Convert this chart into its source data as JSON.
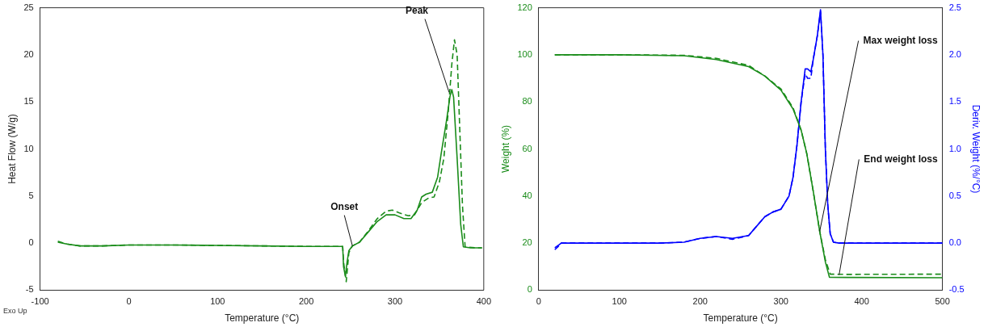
{
  "chart_data": [
    {
      "type": "line",
      "xlabel": "Temperature (°C)",
      "ylabel": "Heat Flow (W/g)",
      "xlim": [
        -100,
        400
      ],
      "xticks": [
        -100,
        0,
        100,
        200,
        300,
        400
      ],
      "ylim": [
        -5,
        25
      ],
      "yticks": [
        -5,
        0,
        5,
        10,
        15,
        20,
        25
      ],
      "grid": false,
      "legend": false,
      "marker": "none",
      "series": [
        {
          "color": "#1a8c1a",
          "line_style": "solid",
          "x": [
            -80,
            -70,
            -55,
            -30,
            0,
            50,
            100,
            150,
            200,
            241,
            242,
            244,
            246,
            248,
            252,
            260,
            270,
            280,
            290,
            300,
            310,
            318,
            325,
            330,
            335,
            342,
            348,
            352,
            358,
            362,
            364,
            366,
            370,
            374,
            377,
            385,
            398
          ],
          "values": [
            0.1,
            -0.1,
            -0.3,
            -0.3,
            -0.2,
            -0.2,
            -0.25,
            -0.3,
            -0.35,
            -0.35,
            -2.5,
            -3.5,
            -2,
            -0.8,
            -0.3,
            0.1,
            1.2,
            2.3,
            3.0,
            3.0,
            2.6,
            2.6,
            3.5,
            4.9,
            5.2,
            5.4,
            7,
            9.5,
            13,
            15.6,
            16.3,
            15.5,
            9,
            2,
            -0.4,
            -0.5,
            -0.5
          ]
        },
        {
          "color": "#1a8c1a",
          "line_style": "dashed",
          "x": [
            -80,
            -70,
            -55,
            -30,
            0,
            50,
            100,
            150,
            200,
            241,
            242,
            245,
            248,
            252,
            260,
            270,
            280,
            290,
            297,
            305,
            315,
            322,
            330,
            338,
            344,
            350,
            355,
            360,
            364,
            367,
            370,
            373,
            376,
            379,
            390,
            398
          ],
          "values": [
            0.2,
            -0.1,
            -0.3,
            -0.3,
            -0.2,
            -0.2,
            -0.25,
            -0.3,
            -0.35,
            -0.35,
            -2,
            -4.1,
            -1,
            -0.3,
            0.1,
            1.3,
            2.6,
            3.4,
            3.5,
            3.2,
            2.9,
            3.0,
            4.3,
            4.8,
            4.9,
            6.5,
            9,
            14,
            19,
            21.6,
            20,
            12,
            4,
            -0.4,
            -0.5,
            -0.5
          ]
        }
      ],
      "annotations": [
        {
          "text": "Onset",
          "x": 252,
          "y": -0.3
        },
        {
          "text": "Peak",
          "x": 361,
          "y": 16
        },
        "Exo Up"
      ]
    },
    {
      "type": "line",
      "xlabel": "Temperature (°C)",
      "ylabel": "Weight (%)",
      "y2label": "Deriv. Weight (%/°C)",
      "xlim": [
        0,
        500
      ],
      "xticks": [
        0,
        100,
        200,
        300,
        400,
        500
      ],
      "ylim": [
        0,
        120
      ],
      "yticks": [
        0,
        20,
        40,
        60,
        80,
        100,
        120
      ],
      "y2lim": [
        -0.5,
        2.5
      ],
      "y2ticks": [
        {
          "value": -0.5,
          "label": "-0.5"
        },
        {
          "value": 0,
          "label": "0.0"
        },
        {
          "value": 0.5,
          "label": "0.5"
        },
        {
          "value": 1,
          "label": "1.0"
        },
        {
          "value": 1.5,
          "label": "1.5"
        },
        {
          "value": 2,
          "label": "2.0"
        },
        {
          "value": 2.5,
          "label": "2.5"
        }
      ],
      "grid": false,
      "legend": false,
      "marker": "none",
      "series": [
        {
          "color": "#1a8c1a",
          "line_style": "solid",
          "x": [
            20,
            100,
            180,
            220,
            260,
            280,
            300,
            315,
            325,
            332,
            340,
            348,
            355,
            360,
            380,
            500
          ],
          "values": [
            100,
            100,
            99.6,
            98,
            95,
            91,
            85,
            77,
            68,
            58,
            42,
            25,
            12,
            5.5,
            5.4,
            5.3
          ]
        },
        {
          "color": "#1a8c1a",
          "line_style": "dashed",
          "x": [
            20,
            100,
            180,
            220,
            260,
            280,
            300,
            315,
            325,
            332,
            340,
            348,
            355,
            361,
            380,
            500
          ],
          "values": [
            100,
            100,
            99.8,
            98.5,
            95.5,
            91,
            85.5,
            77.5,
            68,
            58,
            42,
            25,
            13,
            6.8,
            6.7,
            6.8
          ]
        },
        {
          "color": "#0000ff",
          "line_style": "solid",
          "axis": "y2",
          "x": [
            20,
            25,
            28,
            50,
            100,
            150,
            180,
            200,
            220,
            240,
            260,
            270,
            280,
            290,
            300,
            310,
            315,
            320,
            325,
            330,
            333,
            337,
            340,
            345,
            349,
            352,
            355,
            358,
            361,
            365,
            372,
            500
          ],
          "values": [
            -0.05,
            -0.02,
            0,
            0,
            0,
            0,
            0.01,
            0.05,
            0.07,
            0.05,
            0.08,
            0.18,
            0.28,
            0.33,
            0.36,
            0.5,
            0.7,
            1.05,
            1.5,
            1.85,
            1.85,
            1.82,
            1.95,
            2.2,
            2.48,
            2.0,
            1.0,
            0.4,
            0.1,
            0.01,
            0,
            0
          ]
        },
        {
          "color": "#0000ff",
          "line_style": "dashed",
          "axis": "y2",
          "x": [
            20,
            25,
            28,
            50,
            100,
            150,
            180,
            200,
            220,
            240,
            260,
            270,
            280,
            290,
            300,
            310,
            315,
            320,
            325,
            330,
            333,
            337,
            340,
            345,
            349,
            352,
            355,
            358,
            361,
            365,
            372,
            500
          ],
          "values": [
            -0.07,
            -0.03,
            0,
            0,
            0,
            0,
            0.01,
            0.05,
            0.07,
            0.04,
            0.08,
            0.18,
            0.28,
            0.33,
            0.36,
            0.5,
            0.7,
            1.05,
            1.5,
            1.8,
            1.75,
            1.75,
            1.95,
            2.2,
            2.46,
            2.0,
            1.0,
            0.4,
            0.1,
            0.01,
            0,
            0
          ]
        }
      ],
      "annotations": [
        {
          "text": "Max weight loss",
          "x": 348,
          "y": 25
        },
        {
          "text": "End weight loss",
          "x": 372,
          "y": 6.5
        }
      ]
    }
  ]
}
